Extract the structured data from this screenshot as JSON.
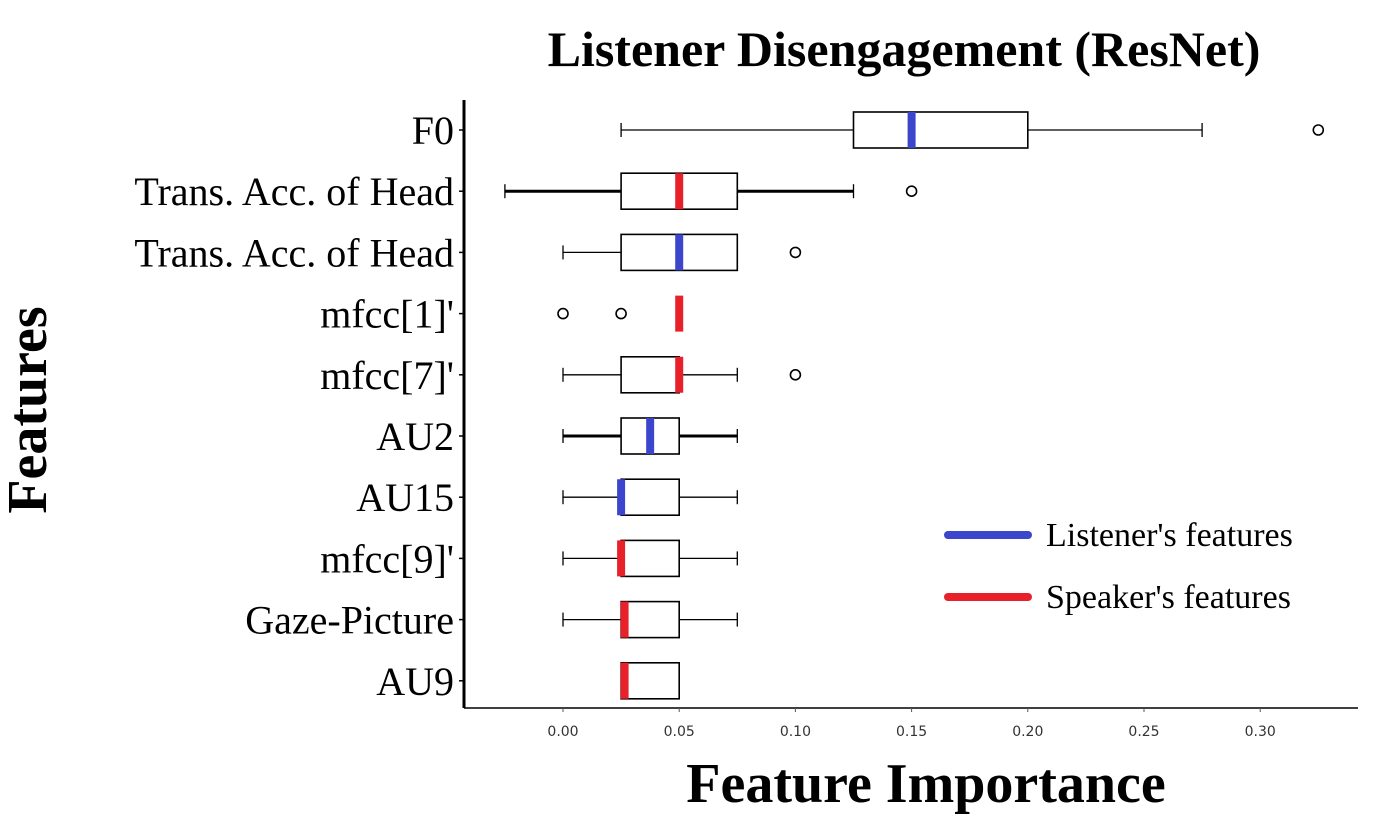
{
  "chart_data": {
    "type": "boxplot",
    "title": "Listener Disengagement (ResNet)",
    "xlabel": "Feature Importance",
    "ylabel": "Features",
    "xlim": [
      -0.04,
      0.34
    ],
    "xticks": [
      0.0,
      0.05,
      0.1,
      0.15,
      0.2,
      0.25,
      0.3
    ],
    "xtick_labels": [
      "0.00",
      "0.05",
      "0.10",
      "0.15",
      "0.20",
      "0.25",
      "0.30"
    ],
    "grid": false,
    "legend_position": "bottom-right",
    "legend": [
      {
        "label": "Listener's features",
        "color": "#3b46cc"
      },
      {
        "label": "Speaker's features",
        "color": "#e8202a"
      }
    ],
    "categories": [
      "F0",
      "Trans. Acc. of Head",
      "Trans. Acc. of Head",
      "mfcc[1]'",
      "mfcc[7]'",
      "AU2",
      "AU15",
      "mfcc[9]'",
      "Gaze-Picture",
      "AU9"
    ],
    "boxes": [
      {
        "label": "F0",
        "group": "listener",
        "whislo": 0.025,
        "q1": 0.125,
        "med": 0.15,
        "q3": 0.2,
        "whishi": 0.275,
        "fliers": [
          0.325
        ]
      },
      {
        "label": "Trans. Acc. of Head",
        "group": "speaker",
        "whislo": -0.025,
        "q1": 0.025,
        "med": 0.05,
        "q3": 0.075,
        "whishi": 0.125,
        "fliers": [
          0.15
        ]
      },
      {
        "label": "Trans. Acc. of Head",
        "group": "listener",
        "whislo": 0.0,
        "q1": 0.025,
        "med": 0.05,
        "q3": 0.075,
        "whishi": 0.075,
        "fliers": [
          0.1
        ]
      },
      {
        "label": "mfcc[1]'",
        "group": "speaker",
        "whislo": 0.05,
        "q1": 0.05,
        "med": 0.05,
        "q3": 0.05,
        "whishi": 0.05,
        "fliers": [
          0.0,
          0.025
        ]
      },
      {
        "label": "mfcc[7]'",
        "group": "speaker",
        "whislo": 0.0,
        "q1": 0.025,
        "med": 0.05,
        "q3": 0.05,
        "whishi": 0.075,
        "fliers": [
          0.1
        ]
      },
      {
        "label": "AU2",
        "group": "listener",
        "whislo": 0.0,
        "q1": 0.025,
        "med": 0.0375,
        "q3": 0.05,
        "whishi": 0.075,
        "fliers": []
      },
      {
        "label": "AU15",
        "group": "listener",
        "whislo": 0.0,
        "q1": 0.025,
        "med": 0.025,
        "q3": 0.05,
        "whishi": 0.075,
        "fliers": []
      },
      {
        "label": "mfcc[9]'",
        "group": "speaker",
        "whislo": 0.0,
        "q1": 0.025,
        "med": 0.025,
        "q3": 0.05,
        "whishi": 0.075,
        "fliers": []
      },
      {
        "label": "Gaze-Picture",
        "group": "speaker",
        "whislo": 0.0,
        "q1": 0.025,
        "med": 0.0265,
        "q3": 0.05,
        "whishi": 0.075,
        "fliers": []
      },
      {
        "label": "AU9",
        "group": "speaker",
        "whislo": 0.025,
        "q1": 0.025,
        "med": 0.0265,
        "q3": 0.05,
        "whishi": 0.05,
        "fliers": []
      }
    ]
  }
}
